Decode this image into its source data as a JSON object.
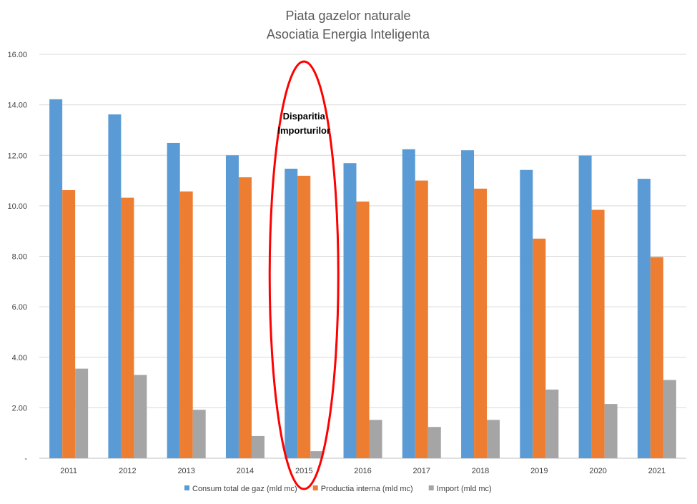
{
  "chart_data": {
    "type": "bar",
    "title": "Piata gazelor naturale",
    "subtitle": "Asociatia Energia Inteligenta",
    "xlabel": "",
    "ylabel": "",
    "categories": [
      "2011",
      "2012",
      "2013",
      "2014",
      "2015",
      "2016",
      "2017",
      "2018",
      "2019",
      "2020",
      "2021"
    ],
    "series": [
      {
        "name": "Consum total de gaz (mld mc)",
        "color": "#5b9bd5",
        "values": [
          14.22,
          13.62,
          12.49,
          12.0,
          11.47,
          11.69,
          12.24,
          12.2,
          11.42,
          11.99,
          11.07
        ]
      },
      {
        "name": "Productia interna (mld mc)",
        "color": "#ed7d31",
        "values": [
          10.62,
          10.32,
          10.57,
          11.13,
          11.19,
          10.17,
          11.0,
          10.68,
          8.7,
          9.84,
          7.97
        ]
      },
      {
        "name": "Import (mld mc)",
        "color": "#a5a5a5",
        "values": [
          3.55,
          3.3,
          1.92,
          0.88,
          0.28,
          1.52,
          1.24,
          1.52,
          2.72,
          2.15,
          3.1
        ]
      }
    ],
    "y_ticks": [
      "-",
      "2.00",
      "4.00",
      "6.00",
      "8.00",
      "10.00",
      "12.00",
      "14.00",
      "16.00"
    ],
    "ylim": [
      0,
      16
    ],
    "grid": true,
    "legend_position": "bottom",
    "annotation": {
      "lines": [
        "Disparitia",
        "Importurilor"
      ],
      "category": "2015",
      "shape": "ellipse",
      "color": "#ff0000"
    }
  }
}
